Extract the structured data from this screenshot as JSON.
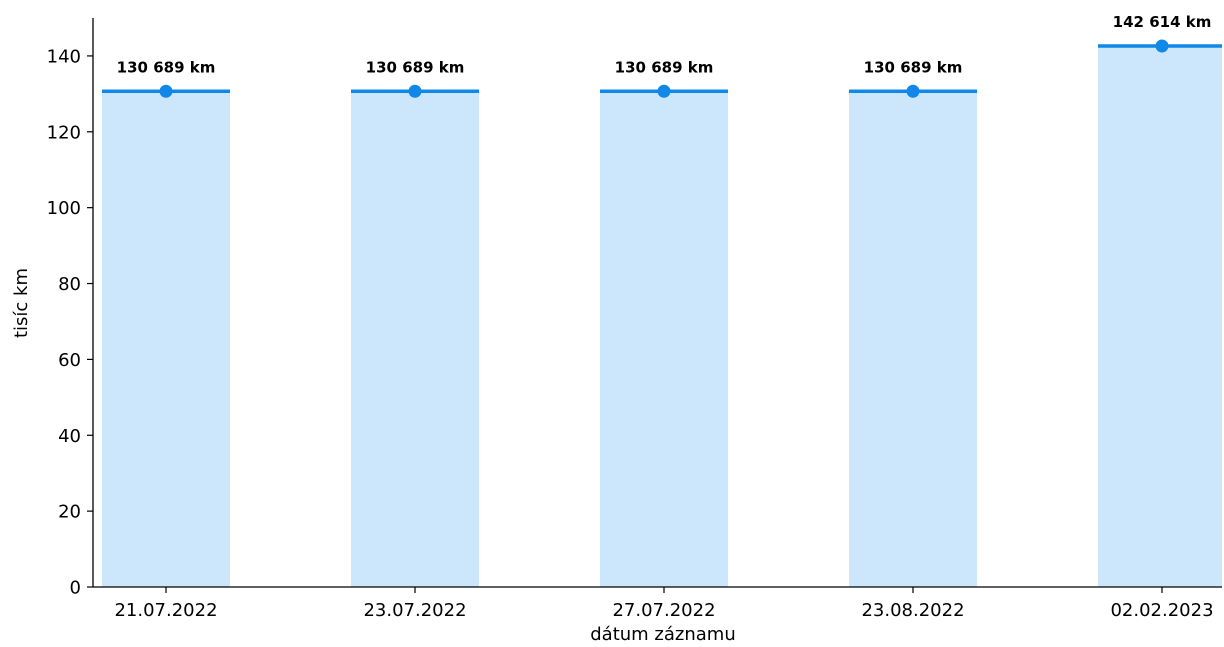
{
  "chart_data": {
    "type": "bar",
    "categories": [
      "21.07.2022",
      "23.07.2022",
      "27.07.2022",
      "23.08.2022",
      "02.02.2023"
    ],
    "values": [
      130.689,
      130.689,
      130.689,
      130.689,
      142.614
    ],
    "data_labels": [
      "130 689 km",
      "130 689 km",
      "130 689 km",
      "130 689 km",
      "142 614 km"
    ],
    "xlabel": "dátum záznamu",
    "ylabel": "tisíc km",
    "ylim": [
      0,
      150
    ],
    "yticks": [
      0,
      20,
      40,
      60,
      80,
      100,
      120,
      140
    ],
    "grid": false,
    "legend": "none"
  },
  "colors": {
    "bar_fill": "#cce7fb",
    "line": "#1188e8",
    "point": "#1188e8",
    "axis": "#000000"
  }
}
